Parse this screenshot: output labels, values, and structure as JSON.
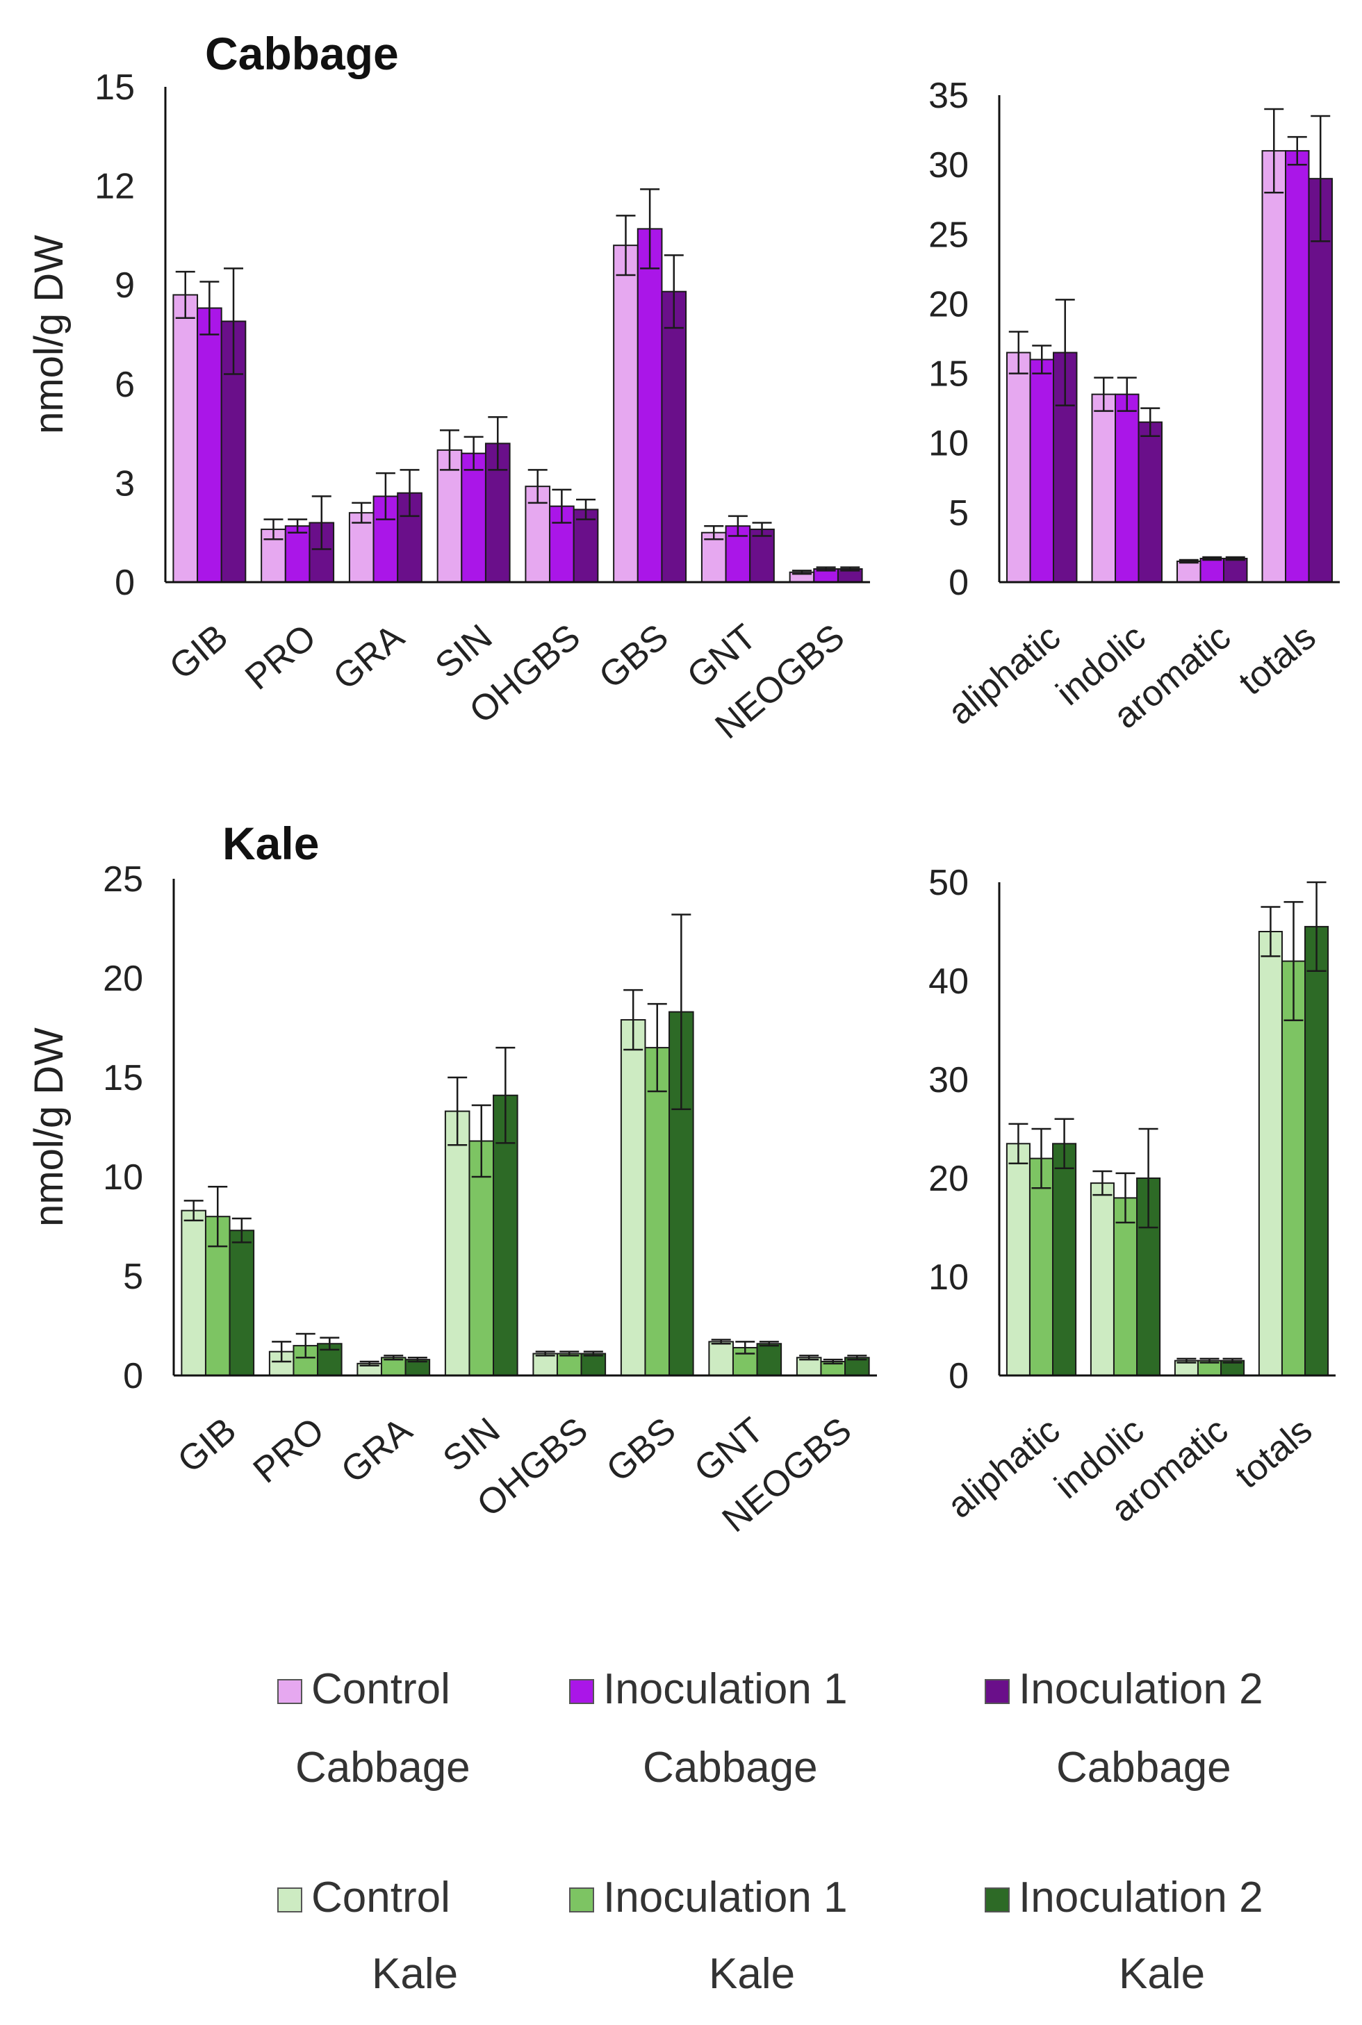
{
  "chart_data": [
    {
      "type": "bar",
      "title": "Cabbage",
      "ylabel": "nmol/g DW",
      "ylim": [
        0,
        15
      ],
      "yticks": [
        "0",
        "3",
        "6",
        "9",
        "12",
        "15"
      ],
      "categories": [
        "GIB",
        "PRO",
        "GRA",
        "SIN",
        "OHGBS",
        "GBS",
        "GNT",
        "NEOGBS"
      ],
      "series": [
        {
          "name": "Control Cabbage",
          "color": "#e6a8f0",
          "values": [
            8.7,
            1.6,
            2.1,
            4.0,
            2.9,
            10.2,
            1.5,
            0.3
          ],
          "errors": [
            0.7,
            0.3,
            0.3,
            0.6,
            0.5,
            0.9,
            0.2,
            0.05
          ]
        },
        {
          "name": "Inoculation 1 Cabbage",
          "color": "#aa16e8",
          "values": [
            8.3,
            1.7,
            2.6,
            3.9,
            2.3,
            10.7,
            1.7,
            0.4
          ],
          "errors": [
            0.8,
            0.2,
            0.7,
            0.5,
            0.5,
            1.2,
            0.3,
            0.05
          ]
        },
        {
          "name": "Inoculation 2 Cabbage",
          "color": "#6a0f8a",
          "values": [
            7.9,
            1.8,
            2.7,
            4.2,
            2.2,
            8.8,
            1.6,
            0.4
          ],
          "errors": [
            1.6,
            0.8,
            0.7,
            0.8,
            0.3,
            1.1,
            0.2,
            0.05
          ]
        }
      ]
    },
    {
      "type": "bar",
      "title": "",
      "ylabel": "",
      "ylim": [
        0,
        35
      ],
      "yticks": [
        "0",
        "5",
        "10",
        "15",
        "20",
        "25",
        "30",
        "35"
      ],
      "categories": [
        "aliphatic",
        "indolic",
        "aromatic",
        "totals"
      ],
      "series": [
        {
          "name": "Control Cabbage",
          "color": "#e6a8f0",
          "values": [
            16.5,
            13.5,
            1.5,
            31.0
          ],
          "errors": [
            1.5,
            1.2,
            0.1,
            3.0
          ]
        },
        {
          "name": "Inoculation 1 Cabbage",
          "color": "#aa16e8",
          "values": [
            16.0,
            13.5,
            1.7,
            31.0
          ],
          "errors": [
            1.0,
            1.2,
            0.1,
            1.0
          ]
        },
        {
          "name": "Inoculation 2 Cabbage",
          "color": "#6a0f8a",
          "values": [
            16.5,
            11.5,
            1.7,
            29.0
          ],
          "errors": [
            3.8,
            1.0,
            0.1,
            4.5
          ]
        }
      ]
    },
    {
      "type": "bar",
      "title": "Kale",
      "ylabel": "nmol/g DW",
      "ylim": [
        0,
        25
      ],
      "yticks": [
        "0",
        "5",
        "10",
        "15",
        "20",
        "25"
      ],
      "categories": [
        "GIB",
        "PRO",
        "GRA",
        "SIN",
        "OHGBS",
        "GBS",
        "GNT",
        "NEOGBS"
      ],
      "series": [
        {
          "name": "Control Kale",
          "color": "#cdebc2",
          "values": [
            8.3,
            1.2,
            0.6,
            13.3,
            1.1,
            17.9,
            1.7,
            0.9
          ],
          "errors": [
            0.5,
            0.5,
            0.1,
            1.7,
            0.1,
            1.5,
            0.1,
            0.1
          ]
        },
        {
          "name": "Inoculation 1 Kale",
          "color": "#7dc463",
          "values": [
            8.0,
            1.5,
            0.9,
            11.8,
            1.1,
            16.5,
            1.4,
            0.7
          ],
          "errors": [
            1.5,
            0.6,
            0.1,
            1.8,
            0.1,
            2.2,
            0.3,
            0.1
          ]
        },
        {
          "name": "Inoculation 2 Kale",
          "color": "#2d6a26",
          "values": [
            7.3,
            1.6,
            0.8,
            14.1,
            1.1,
            18.3,
            1.6,
            0.9
          ],
          "errors": [
            0.6,
            0.3,
            0.1,
            2.4,
            0.1,
            4.9,
            0.1,
            0.1
          ]
        }
      ]
    },
    {
      "type": "bar",
      "title": "",
      "ylabel": "",
      "ylim": [
        0,
        50
      ],
      "yticks": [
        "0",
        "10",
        "20",
        "30",
        "40",
        "50"
      ],
      "categories": [
        "aliphatic",
        "indolic",
        "aromatic",
        "totals"
      ],
      "series": [
        {
          "name": "Control Kale",
          "color": "#cdebc2",
          "values": [
            23.5,
            19.5,
            1.5,
            45.0
          ],
          "errors": [
            2.0,
            1.2,
            0.2,
            2.5
          ]
        },
        {
          "name": "Inoculation 1 Kale",
          "color": "#7dc463",
          "values": [
            22.0,
            18.0,
            1.5,
            42.0
          ],
          "errors": [
            3.0,
            2.5,
            0.2,
            6.0
          ]
        },
        {
          "name": "Inoculation 2 Kale",
          "color": "#2d6a26",
          "values": [
            23.5,
            20.0,
            1.5,
            45.5
          ],
          "errors": [
            2.5,
            5.0,
            0.2,
            4.5
          ]
        }
      ]
    }
  ],
  "legend": {
    "cabbage": [
      {
        "line1": "Control",
        "line2": "Cabbage",
        "color": "#e6a8f0"
      },
      {
        "line1": "Inoculation 1",
        "line2": "Cabbage",
        "color": "#aa16e8"
      },
      {
        "line1": "Inoculation 2",
        "line2": "Cabbage",
        "color": "#6a0f8a"
      }
    ],
    "kale": [
      {
        "line1": "Control",
        "line2": "Kale",
        "color": "#cdebc2"
      },
      {
        "line1": "Inoculation 1",
        "line2": "Kale",
        "color": "#7dc463"
      },
      {
        "line1": "Inoculation 2",
        "line2": "Kale",
        "color": "#2d6a26"
      }
    ]
  }
}
